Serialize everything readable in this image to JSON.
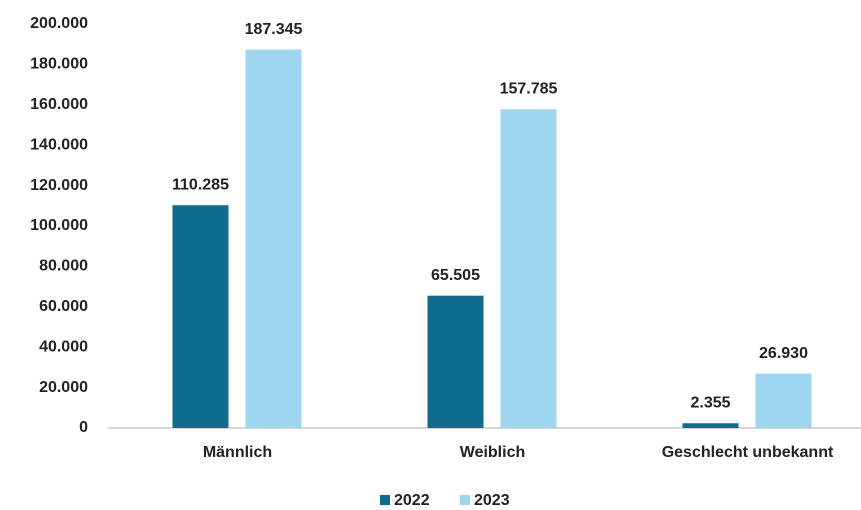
{
  "chart_data": {
    "type": "bar",
    "categories": [
      "Männlich",
      "Weiblich",
      "Geschlecht unbekannt"
    ],
    "series": [
      {
        "name": "2022",
        "color": "#0e6d8f",
        "values": [
          110285,
          65505,
          2355
        ],
        "value_labels": [
          "110.285",
          "65.505",
          "2.355"
        ]
      },
      {
        "name": "2023",
        "color": "#9dd6ee",
        "values": [
          187345,
          157785,
          26930
        ],
        "value_labels": [
          "187.345",
          "157.785",
          "26.930"
        ]
      }
    ],
    "ylim": [
      0,
      200000
    ],
    "yticks": [
      0,
      {
        "value": 20000,
        "label": "20.000"
      },
      {
        "value": 40000,
        "label": "40.000"
      },
      {
        "value": 60000,
        "label": "60.000"
      },
      {
        "value": 80000,
        "label": "80.000"
      },
      {
        "value": 100000,
        "label": "100.000"
      },
      {
        "value": 120000,
        "label": "120.000"
      },
      {
        "value": 140000,
        "label": "140.000"
      },
      {
        "value": 160000,
        "label": "160.000"
      },
      {
        "value": 180000,
        "label": "180.000"
      },
      {
        "value": 200000,
        "label": "200.000"
      }
    ],
    "grid": false,
    "legend": "bottom"
  }
}
